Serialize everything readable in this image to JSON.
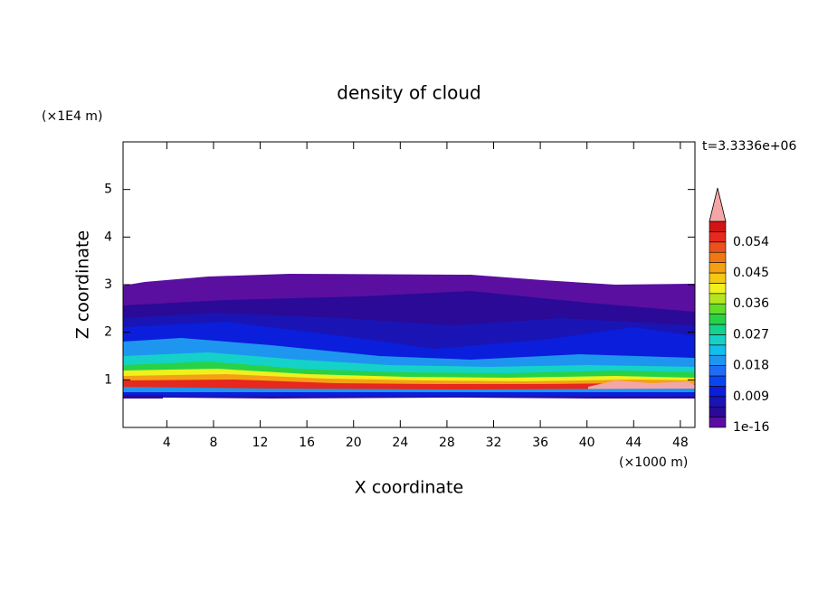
{
  "chart_data": {
    "type": "contour",
    "title": "density of cloud",
    "x_label": "X coordinate",
    "y_label": "Z coordinate",
    "x_unit": "(×1000 m)",
    "y_unit": "(×1E4 m)",
    "annotation": "t=3.3336e+06",
    "xlim": [
      0.25,
      49.25
    ],
    "xticks": [
      4,
      8,
      12,
      16,
      20,
      24,
      28,
      32,
      36,
      40,
      44,
      48
    ],
    "ylim": [
      0,
      6
    ],
    "yticks": [
      1,
      2,
      3,
      4,
      5
    ],
    "colorbar": {
      "levels": [
        1e-16,
        0.003,
        0.006,
        0.009,
        0.012,
        0.015,
        0.018,
        0.021,
        0.024,
        0.027,
        0.03,
        0.033,
        0.036,
        0.039,
        0.042,
        0.045,
        0.048,
        0.051,
        0.054,
        0.057,
        0.06
      ],
      "colors": [
        "#5a0fa0",
        "#2a0a96",
        "#1a14b4",
        "#0a1edc",
        "#0a46f0",
        "#1e6ef5",
        "#1e96f0",
        "#14beeb",
        "#14d2c8",
        "#14d28c",
        "#28d246",
        "#64dc28",
        "#b4e61e",
        "#f0f01e",
        "#f5c814",
        "#f5a014",
        "#f07814",
        "#eb501e",
        "#e6281e",
        "#d21414"
      ],
      "extend_color": "#f4a6a6",
      "ticks": [
        1e-16,
        0.009,
        0.018,
        0.027,
        0.036,
        0.045,
        0.054
      ]
    }
  }
}
